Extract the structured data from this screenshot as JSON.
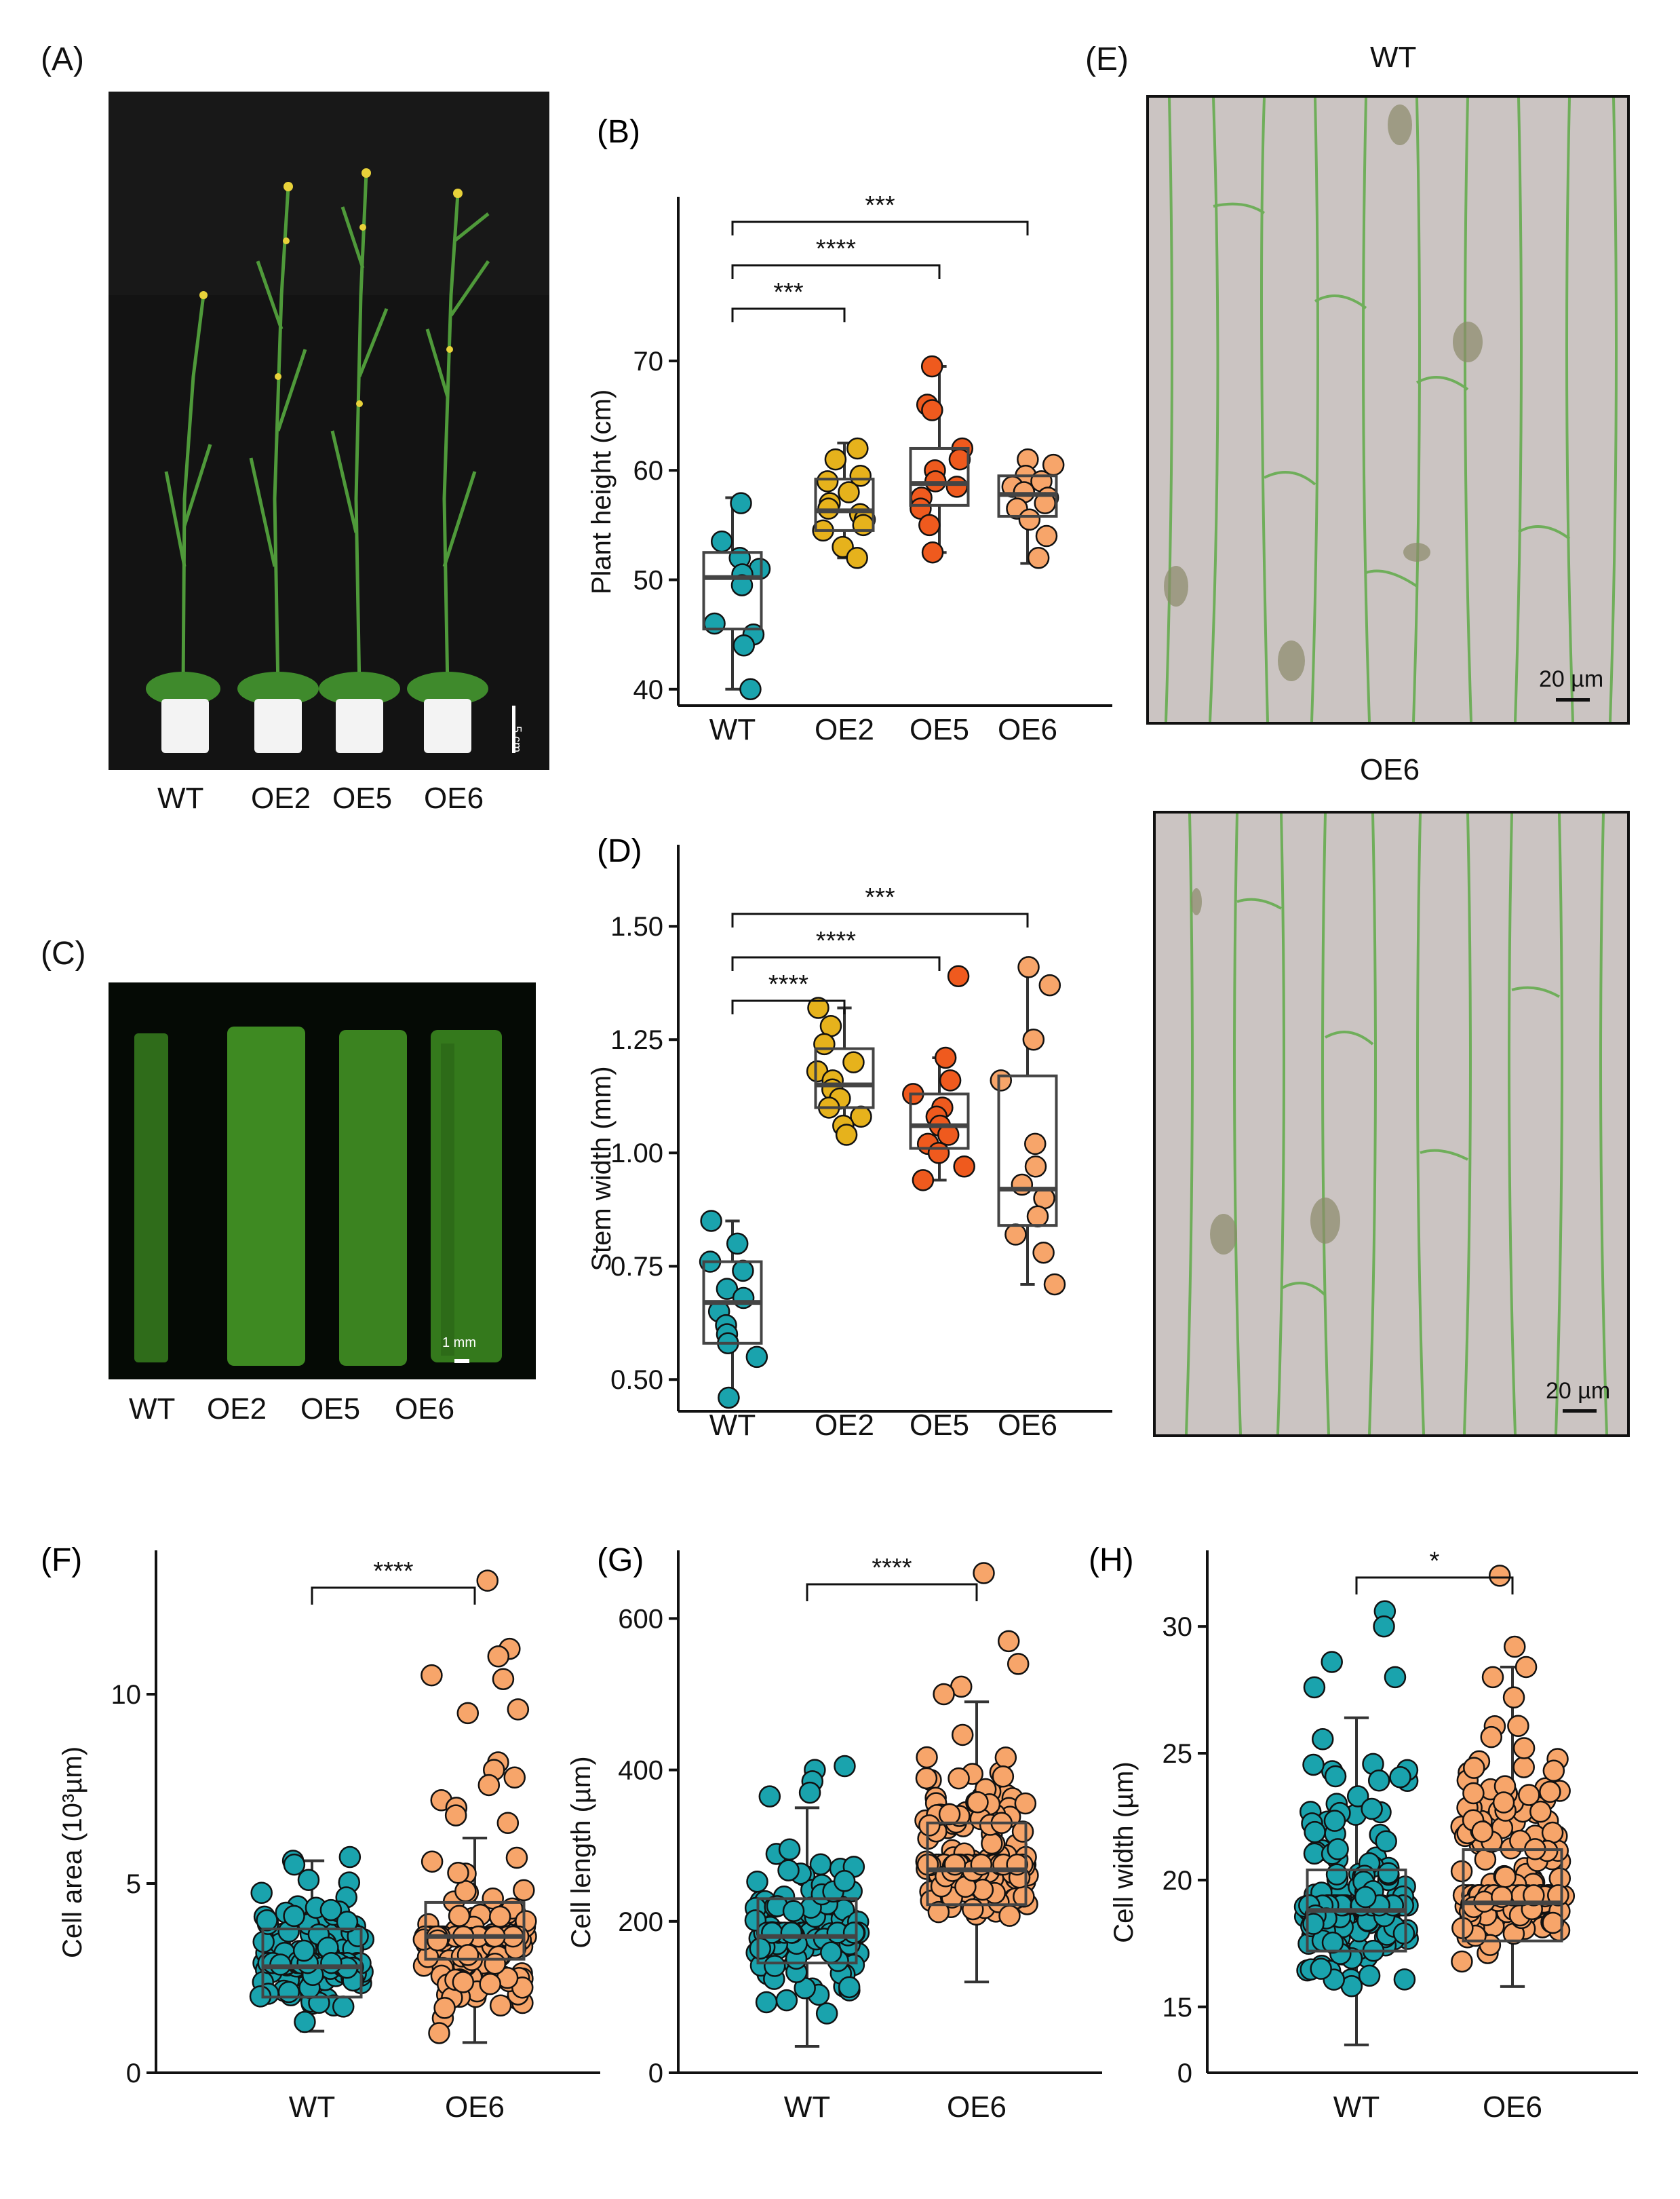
{
  "panels": {
    "A": {
      "letter": "(A)",
      "labels": [
        "WT",
        "OE2",
        "OE5",
        "OE6"
      ],
      "scale": "5 cm"
    },
    "C": {
      "letter": "(C)",
      "labels": [
        "WT",
        "OE2",
        "OE5",
        "OE6"
      ],
      "scale": "1 mm"
    },
    "E": {
      "letter": "(E)",
      "top_title": "WT",
      "bottom_title": "OE6",
      "scale": "20 µm"
    }
  },
  "colors": {
    "wt": "#1aa3ad",
    "oe2": "#e6b21c",
    "oe5": "#ef5a1e",
    "oe6": "#f7a56a"
  },
  "chart_data": [
    {
      "id": "B",
      "letter": "(B)",
      "type": "box",
      "ylabel": "Plant height (cm)",
      "ylim": [
        38.5,
        85
      ],
      "yticks": [
        40,
        50,
        60,
        70
      ],
      "categories": [
        "WT",
        "OE2",
        "OE5",
        "OE6"
      ],
      "series": [
        {
          "name": "WT",
          "color": "#1aa3ad",
          "box": [
            45.5,
            50.2,
            52.5
          ],
          "whisker": [
            40,
            57.5
          ],
          "points": [
            57,
            53.5,
            52,
            51,
            50.5,
            49.5,
            46,
            45,
            44,
            40
          ]
        },
        {
          "name": "OE2",
          "color": "#e6b21c",
          "box": [
            54.5,
            56.3,
            59.2
          ],
          "whisker": [
            52,
            62.5
          ],
          "points": [
            62,
            61,
            59.5,
            59,
            58,
            57,
            56.5,
            56,
            55.5,
            55,
            54.5,
            53,
            52
          ]
        },
        {
          "name": "OE5",
          "color": "#ef5a1e",
          "box": [
            56.8,
            58.8,
            62
          ],
          "whisker": [
            52.5,
            69.5
          ],
          "points": [
            69.5,
            66,
            65.5,
            62,
            61,
            60,
            59,
            58.5,
            57.5,
            56.5,
            55,
            52.5
          ]
        },
        {
          "name": "OE6",
          "color": "#f7a56a",
          "box": [
            55.8,
            57.8,
            59.5
          ],
          "whisker": [
            51.5,
            61
          ],
          "points": [
            61,
            60.5,
            59.5,
            59,
            58.5,
            58,
            57.5,
            57,
            56.5,
            55.5,
            54,
            52
          ]
        }
      ],
      "significance": [
        {
          "from": "WT",
          "to": "OE2",
          "label": "***"
        },
        {
          "from": "WT",
          "to": "OE5",
          "label": "****"
        },
        {
          "from": "WT",
          "to": "OE6",
          "label": "***"
        }
      ]
    },
    {
      "id": "D",
      "letter": "(D)",
      "type": "box",
      "ylabel": "Stem width (mm)",
      "ylim": [
        0.43,
        1.68
      ],
      "yticks": [
        0.5,
        0.75,
        1.0,
        1.25,
        1.5
      ],
      "ytick_labels": [
        "0.50",
        "0.75",
        "1.00",
        "1.25",
        "1.50"
      ],
      "categories": [
        "WT",
        "OE2",
        "OE5",
        "OE6"
      ],
      "series": [
        {
          "name": "WT",
          "color": "#1aa3ad",
          "box": [
            0.58,
            0.67,
            0.76
          ],
          "whisker": [
            0.46,
            0.85
          ],
          "points": [
            0.85,
            0.8,
            0.76,
            0.74,
            0.7,
            0.68,
            0.65,
            0.62,
            0.6,
            0.58,
            0.55,
            0.46
          ]
        },
        {
          "name": "OE2",
          "color": "#e6b21c",
          "box": [
            1.1,
            1.15,
            1.23
          ],
          "whisker": [
            1.04,
            1.32
          ],
          "points": [
            1.32,
            1.28,
            1.24,
            1.2,
            1.18,
            1.16,
            1.14,
            1.12,
            1.1,
            1.08,
            1.06,
            1.04
          ]
        },
        {
          "name": "OE5",
          "color": "#ef5a1e",
          "box": [
            1.01,
            1.06,
            1.13
          ],
          "whisker": [
            0.94,
            1.21
          ],
          "points": [
            1.39,
            1.21,
            1.16,
            1.13,
            1.1,
            1.08,
            1.06,
            1.04,
            1.02,
            1.0,
            0.97,
            0.94
          ]
        },
        {
          "name": "OE6",
          "color": "#f7a56a",
          "box": [
            0.84,
            0.92,
            1.17
          ],
          "whisker": [
            0.71,
            1.41
          ],
          "points": [
            1.41,
            1.37,
            1.25,
            1.16,
            1.02,
            0.97,
            0.93,
            0.9,
            0.86,
            0.82,
            0.78,
            0.71
          ]
        }
      ],
      "significance": [
        {
          "from": "WT",
          "to": "OE2",
          "label": "****"
        },
        {
          "from": "WT",
          "to": "OE5",
          "label": "****"
        },
        {
          "from": "WT",
          "to": "OE6",
          "label": "***"
        }
      ]
    },
    {
      "id": "F",
      "letter": "(F)",
      "type": "box",
      "ylabel": "Cell area (10³µm)",
      "ylim": [
        0,
        13.8
      ],
      "yticks": [
        0,
        5,
        10
      ],
      "ytick_labels": [
        "0",
        "5",
        "10"
      ],
      "categories": [
        "WT",
        "OE6"
      ],
      "series": [
        {
          "name": "WT",
          "color": "#1aa3ad",
          "box": [
            2.0,
            2.8,
            3.8
          ],
          "whisker": [
            1.1,
            5.6
          ],
          "cloud": {
            "n": 140,
            "min": 1.1,
            "max": 5.6,
            "center": 2.9
          },
          "points": [
            5.7,
            5.6,
            5.5
          ]
        },
        {
          "name": "OE6",
          "color": "#f7a56a",
          "box": [
            3.0,
            3.6,
            4.5
          ],
          "whisker": [
            0.8,
            6.2
          ],
          "cloud": {
            "n": 130,
            "min": 0.8,
            "max": 6.2,
            "center": 3.6
          },
          "points": [
            13,
            11.2,
            11,
            10.5,
            10.4,
            9.6,
            9.5,
            8.2,
            8.0,
            7.8,
            7.6,
            7.2,
            7.0,
            6.8,
            6.6
          ]
        }
      ],
      "significance": [
        {
          "from": "WT",
          "to": "OE6",
          "label": "****"
        }
      ]
    },
    {
      "id": "G",
      "letter": "(G)",
      "type": "box",
      "ylabel": "Cell length (µm)",
      "ylim": [
        0,
        690
      ],
      "yticks": [
        0,
        200,
        400,
        600
      ],
      "categories": [
        "WT",
        "OE6"
      ],
      "series": [
        {
          "name": "WT",
          "color": "#1aa3ad",
          "box": [
            145,
            180,
            230
          ],
          "whisker": [
            35,
            350
          ],
          "cloud": {
            "n": 130,
            "min": 35,
            "max": 350,
            "center": 185
          },
          "points": [
            405,
            400,
            385,
            370,
            365
          ]
        },
        {
          "name": "OE6",
          "color": "#f7a56a",
          "box": [
            222,
            268,
            330
          ],
          "whisker": [
            120,
            490
          ],
          "cloud": {
            "n": 150,
            "min": 120,
            "max": 490,
            "center": 275
          },
          "points": [
            660,
            570,
            540,
            510,
            500
          ]
        }
      ],
      "significance": [
        {
          "from": "WT",
          "to": "OE6",
          "label": "****"
        }
      ]
    },
    {
      "id": "H",
      "letter": "(H)",
      "type": "box",
      "ylabel": "Cell width (µm)",
      "ylim": [
        12.4,
        33
      ],
      "yticks": [
        15,
        20,
        25,
        30
      ],
      "ytick_labels": [
        "15",
        "20",
        "25",
        "30"
      ],
      "extra_tick_label": "0",
      "categories": [
        "WT",
        "OE6"
      ],
      "series": [
        {
          "name": "WT",
          "color": "#1aa3ad",
          "box": [
            17.2,
            18.8,
            20.4
          ],
          "whisker": [
            13.5,
            26.4
          ],
          "cloud": {
            "n": 170,
            "min": 13.5,
            "max": 26.4,
            "center": 19
          },
          "points": [
            30.6,
            30.0,
            28.6,
            28.0,
            27.6
          ]
        },
        {
          "name": "OE6",
          "color": "#f7a56a",
          "box": [
            17.6,
            19.1,
            21.2
          ],
          "whisker": [
            15.8,
            28.4
          ],
          "cloud": {
            "n": 170,
            "min": 15.8,
            "max": 28.4,
            "center": 19.4
          },
          "points": [
            32.0,
            29.2,
            28.4,
            28.0,
            27.2
          ]
        }
      ],
      "significance": [
        {
          "from": "WT",
          "to": "OE6",
          "label": "*"
        }
      ]
    }
  ]
}
